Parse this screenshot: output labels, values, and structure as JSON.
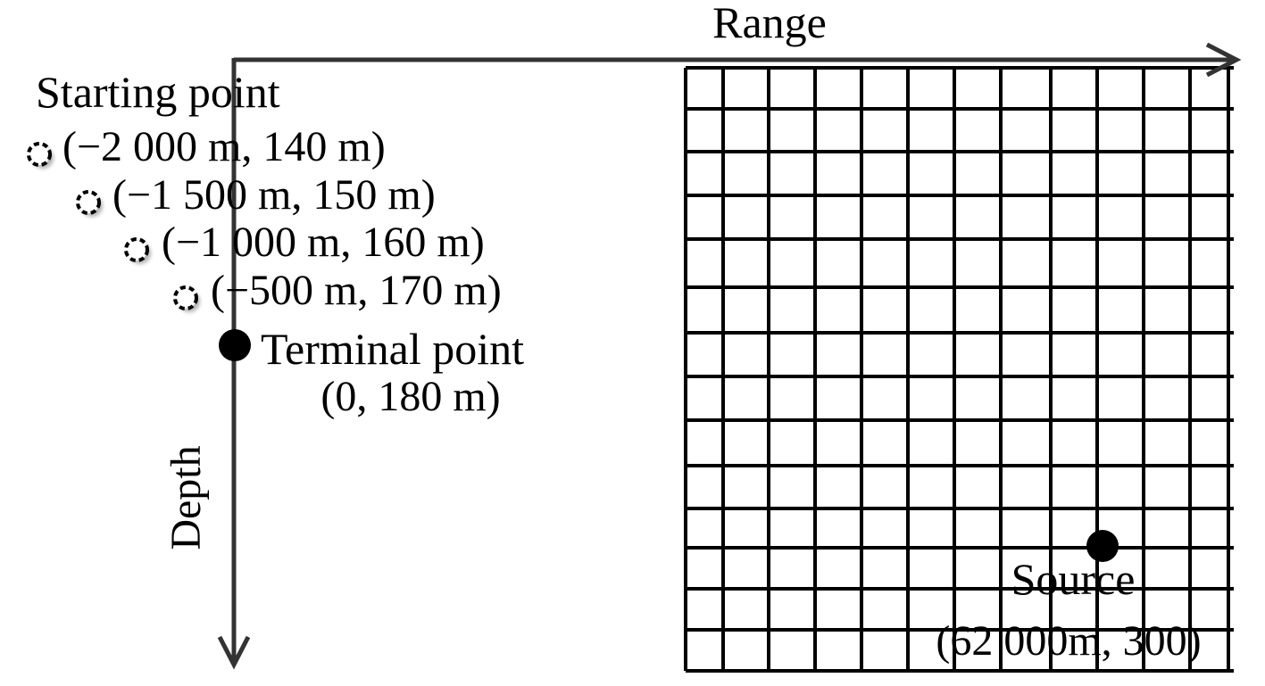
{
  "axes": {
    "range_label": "Range",
    "depth_label": "Depth"
  },
  "track": {
    "starting_label": "Starting point",
    "points": [
      {
        "label": "(−2 000 m, 140 m)"
      },
      {
        "label": "(−1 500 m, 150 m)"
      },
      {
        "label": "(−1 000 m, 160 m)"
      },
      {
        "label": "(−500 m, 170 m)"
      }
    ],
    "terminal_label": "Terminal point",
    "terminal_coords": "(0, 180 m)"
  },
  "source": {
    "label": "Source",
    "coords": "(62 000m, 300)"
  },
  "colors": {
    "ink": "#000000",
    "axis": "#333333",
    "background": "#ffffff"
  }
}
